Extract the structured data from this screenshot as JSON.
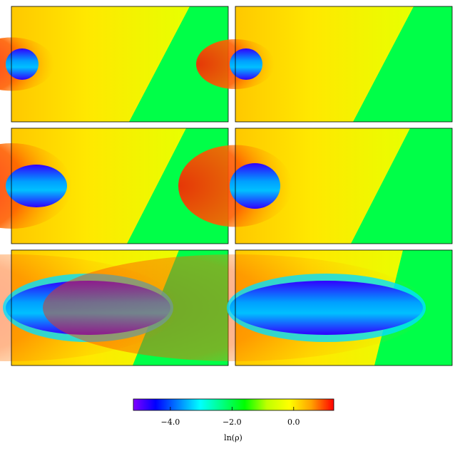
{
  "chart_data": {
    "type": "heatmap",
    "colorbar": {
      "label": "ln(ρ)",
      "lim": [
        -5.2,
        1.3
      ],
      "ticks": [
        {
          "value": -4,
          "label": "−4.0"
        },
        {
          "value": -2,
          "label": "−2.0"
        },
        {
          "value": 0,
          "label": "0.0"
        }
      ],
      "colormap": [
        "#8000ff",
        "#0000ff",
        "#0080ff",
        "#00ffff",
        "#00ff80",
        "#00ff00",
        "#c0ff00",
        "#ffff00",
        "#ffa000",
        "#ff0000"
      ]
    }
  }
}
